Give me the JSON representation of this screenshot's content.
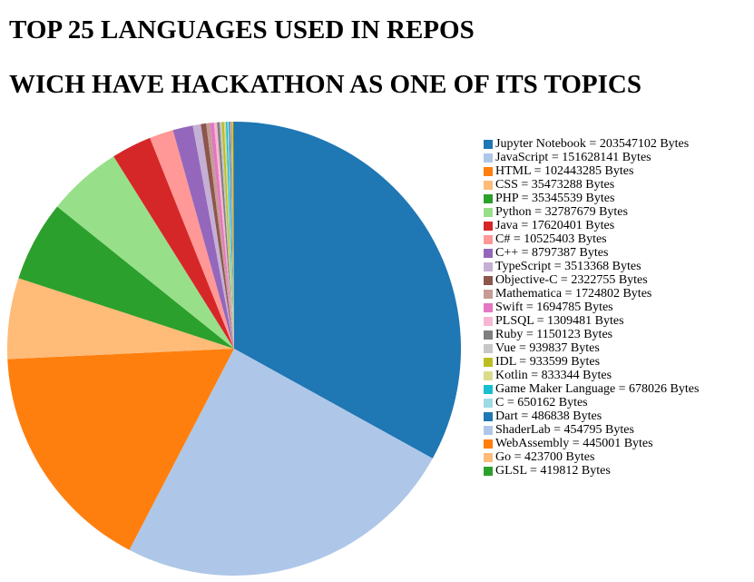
{
  "title_line1": "TOP 25 LANGUAGES USED IN REPOS",
  "title_line2": "WICH HAVE HACKATHON AS ONE OF ITS TOPICS",
  "chart_data": {
    "type": "pie",
    "title": "TOP 25 LANGUAGES USED IN REPOS WICH HAVE HACKATHON AS ONE OF ITS TOPICS",
    "legend_position": "right",
    "unit": "Bytes",
    "slices": [
      {
        "label": "Jupyter Notebook",
        "value": 203547102,
        "color": "#1f77b4"
      },
      {
        "label": "JavaScript",
        "value": 151628141,
        "color": "#aec7e8"
      },
      {
        "label": "HTML",
        "value": 102443285,
        "color": "#ff7f0e"
      },
      {
        "label": "CSS",
        "value": 35473288,
        "color": "#ffbb78"
      },
      {
        "label": "PHP",
        "value": 35345539,
        "color": "#2ca02c"
      },
      {
        "label": "Python",
        "value": 32787679,
        "color": "#98df8a"
      },
      {
        "label": "Java",
        "value": 17620401,
        "color": "#d62728"
      },
      {
        "label": "C#",
        "value": 10525403,
        "color": "#ff9896"
      },
      {
        "label": "C++",
        "value": 8797387,
        "color": "#9467bd"
      },
      {
        "label": "TypeScript",
        "value": 3513368,
        "color": "#c5b0d5"
      },
      {
        "label": "Objective-C",
        "value": 2322755,
        "color": "#8c564b"
      },
      {
        "label": "Mathematica",
        "value": 1724802,
        "color": "#c49c94"
      },
      {
        "label": "Swift",
        "value": 1694785,
        "color": "#e377c2"
      },
      {
        "label": "PLSQL",
        "value": 1309481,
        "color": "#f7b6d2"
      },
      {
        "label": "Ruby",
        "value": 1150123,
        "color": "#7f7f7f"
      },
      {
        "label": "Vue",
        "value": 939837,
        "color": "#c7c7c7"
      },
      {
        "label": "IDL",
        "value": 933599,
        "color": "#bcbd22"
      },
      {
        "label": "Kotlin",
        "value": 833344,
        "color": "#dbdb8d"
      },
      {
        "label": "Game Maker Language",
        "value": 678026,
        "color": "#17becf"
      },
      {
        "label": "C",
        "value": 650162,
        "color": "#9edae5"
      },
      {
        "label": "Dart",
        "value": 486838,
        "color": "#1f77b4"
      },
      {
        "label": "ShaderLab",
        "value": 454795,
        "color": "#aec7e8"
      },
      {
        "label": "WebAssembly",
        "value": 445001,
        "color": "#ff7f0e"
      },
      {
        "label": "Go",
        "value": 423700,
        "color": "#ffbb78"
      },
      {
        "label": "GLSL",
        "value": 419812,
        "color": "#2ca02c"
      }
    ]
  }
}
